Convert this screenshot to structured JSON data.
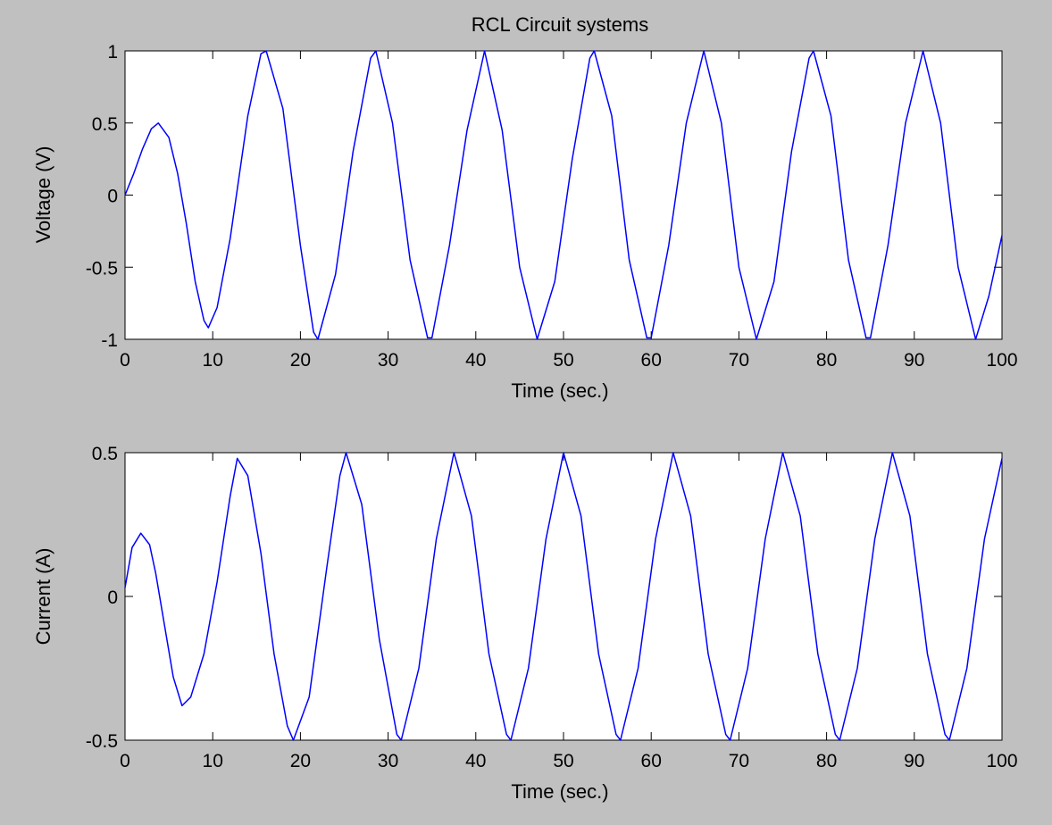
{
  "figure": {
    "background": "#c0c0c0",
    "axes_background": "#ffffff",
    "line_color": "#0000ff"
  },
  "chart_data": [
    {
      "type": "line",
      "title": "RCL Circuit systems",
      "xlabel": "Time (sec.)",
      "ylabel": "Voltage (V)",
      "xlim": [
        0,
        100
      ],
      "ylim": [
        -1,
        1
      ],
      "xticks": [
        0,
        10,
        20,
        30,
        40,
        50,
        60,
        70,
        80,
        90,
        100
      ],
      "yticks": [
        -1,
        -0.5,
        0,
        0.5,
        1
      ],
      "xtick_labels": [
        "0",
        "10",
        "20",
        "30",
        "40",
        "50",
        "60",
        "70",
        "80",
        "90",
        "100"
      ],
      "ytick_labels": [
        "-1",
        "-0.5",
        "0",
        "0.5",
        "1"
      ],
      "grid": false,
      "series": [
        {
          "color": "#0000ff",
          "points": [
            [
              0,
              0
            ],
            [
              1,
              0.15
            ],
            [
              2,
              0.32
            ],
            [
              3,
              0.46
            ],
            [
              3.8,
              0.5
            ],
            [
              5,
              0.4
            ],
            [
              6,
              0.15
            ],
            [
              7,
              -0.2
            ],
            [
              8,
              -0.6
            ],
            [
              9,
              -0.87
            ],
            [
              9.5,
              -0.92
            ],
            [
              10.5,
              -0.78
            ],
            [
              12,
              -0.3
            ],
            [
              14,
              0.55
            ],
            [
              15.5,
              0.98
            ],
            [
              16.1,
              1
            ],
            [
              18,
              0.6
            ],
            [
              20,
              -0.35
            ],
            [
              21.5,
              -0.95
            ],
            [
              22,
              -1
            ],
            [
              24,
              -0.55
            ],
            [
              26,
              0.3
            ],
            [
              28,
              0.95
            ],
            [
              28.6,
              1
            ],
            [
              30.5,
              0.5
            ],
            [
              32.5,
              -0.45
            ],
            [
              34.5,
              -0.99
            ],
            [
              35,
              -0.99
            ],
            [
              37,
              -0.35
            ],
            [
              39,
              0.45
            ],
            [
              41,
              1
            ],
            [
              43,
              0.45
            ],
            [
              45,
              -0.5
            ],
            [
              47,
              -1
            ],
            [
              49,
              -0.6
            ],
            [
              51,
              0.25
            ],
            [
              53,
              0.95
            ],
            [
              53.5,
              1
            ],
            [
              55.5,
              0.55
            ],
            [
              57.5,
              -0.45
            ],
            [
              59.5,
              -0.99
            ],
            [
              60,
              -0.99
            ],
            [
              62,
              -0.35
            ],
            [
              64,
              0.5
            ],
            [
              66,
              1
            ],
            [
              68,
              0.5
            ],
            [
              70,
              -0.5
            ],
            [
              72,
              -1
            ],
            [
              74,
              -0.6
            ],
            [
              76,
              0.3
            ],
            [
              78,
              0.95
            ],
            [
              78.5,
              1
            ],
            [
              80.5,
              0.55
            ],
            [
              82.5,
              -0.45
            ],
            [
              84.5,
              -0.99
            ],
            [
              85,
              -0.99
            ],
            [
              87,
              -0.35
            ],
            [
              89,
              0.5
            ],
            [
              91,
              1
            ],
            [
              93,
              0.5
            ],
            [
              95,
              -0.5
            ],
            [
              97,
              -1
            ],
            [
              98.5,
              -0.7
            ],
            [
              100,
              -0.28
            ]
          ]
        }
      ]
    },
    {
      "type": "line",
      "title": "",
      "xlabel": "Time (sec.)",
      "ylabel": "Current (A)",
      "xlim": [
        0,
        100
      ],
      "ylim": [
        -0.5,
        0.5
      ],
      "xticks": [
        0,
        10,
        20,
        30,
        40,
        50,
        60,
        70,
        80,
        90,
        100
      ],
      "yticks": [
        -0.5,
        0,
        0.5
      ],
      "xtick_labels": [
        "0",
        "10",
        "20",
        "30",
        "40",
        "50",
        "60",
        "70",
        "80",
        "90",
        "100"
      ],
      "ytick_labels": [
        "-0.5",
        "0",
        "0.5"
      ],
      "grid": false,
      "series": [
        {
          "color": "#0000ff",
          "points": [
            [
              0,
              0.03
            ],
            [
              0.8,
              0.17
            ],
            [
              1.8,
              0.22
            ],
            [
              2.8,
              0.18
            ],
            [
              3.5,
              0.08
            ],
            [
              4.5,
              -0.1
            ],
            [
              5.5,
              -0.28
            ],
            [
              6.5,
              -0.38
            ],
            [
              7.5,
              -0.35
            ],
            [
              9,
              -0.2
            ],
            [
              10.5,
              0.05
            ],
            [
              12,
              0.35
            ],
            [
              12.8,
              0.48
            ],
            [
              14,
              0.42
            ],
            [
              15.5,
              0.15
            ],
            [
              17,
              -0.2
            ],
            [
              18.5,
              -0.45
            ],
            [
              19.2,
              -0.5
            ],
            [
              21,
              -0.35
            ],
            [
              23,
              0.1
            ],
            [
              24.5,
              0.42
            ],
            [
              25.2,
              0.5
            ],
            [
              27,
              0.32
            ],
            [
              29,
              -0.15
            ],
            [
              31,
              -0.48
            ],
            [
              31.5,
              -0.5
            ],
            [
              33.5,
              -0.25
            ],
            [
              35.5,
              0.2
            ],
            [
              37.5,
              0.5
            ],
            [
              39.5,
              0.28
            ],
            [
              41.5,
              -0.2
            ],
            [
              43.5,
              -0.48
            ],
            [
              44,
              -0.5
            ],
            [
              46,
              -0.25
            ],
            [
              48,
              0.2
            ],
            [
              50,
              0.5
            ],
            [
              52,
              0.28
            ],
            [
              54,
              -0.2
            ],
            [
              56,
              -0.48
            ],
            [
              56.5,
              -0.5
            ],
            [
              58.5,
              -0.25
            ],
            [
              60.5,
              0.2
            ],
            [
              62.5,
              0.5
            ],
            [
              64.5,
              0.28
            ],
            [
              66.5,
              -0.2
            ],
            [
              68.5,
              -0.48
            ],
            [
              69,
              -0.5
            ],
            [
              71,
              -0.25
            ],
            [
              73,
              0.2
            ],
            [
              75,
              0.5
            ],
            [
              77,
              0.28
            ],
            [
              79,
              -0.2
            ],
            [
              81,
              -0.48
            ],
            [
              81.5,
              -0.5
            ],
            [
              83.5,
              -0.25
            ],
            [
              85.5,
              0.2
            ],
            [
              87.5,
              0.5
            ],
            [
              89.5,
              0.28
            ],
            [
              91.5,
              -0.2
            ],
            [
              93.5,
              -0.48
            ],
            [
              94,
              -0.5
            ],
            [
              96,
              -0.25
            ],
            [
              98,
              0.2
            ],
            [
              100,
              0.48
            ]
          ]
        }
      ]
    }
  ]
}
